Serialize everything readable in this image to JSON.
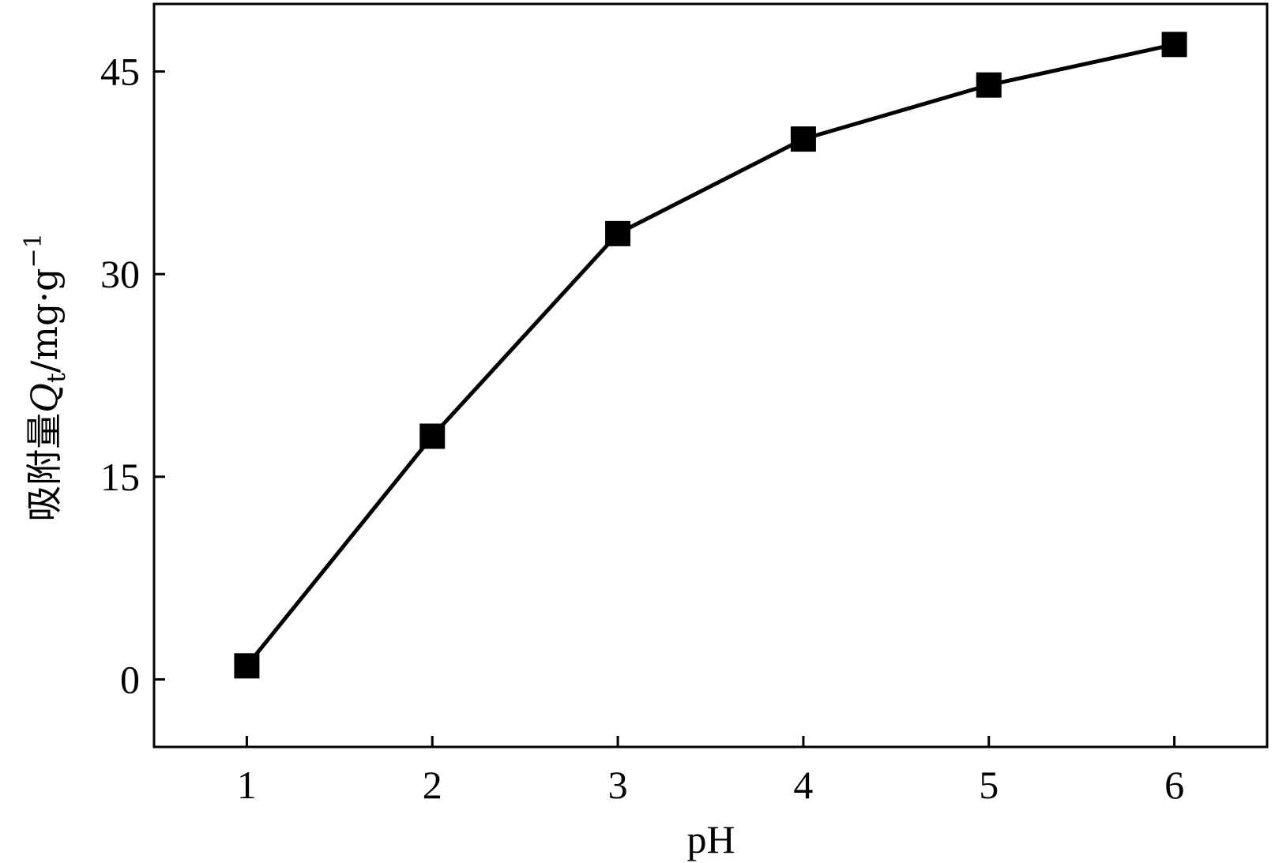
{
  "chart_data": {
    "type": "line",
    "x": [
      1,
      2,
      3,
      4,
      5,
      6
    ],
    "series": [
      {
        "values": [
          1,
          18,
          33,
          40,
          44,
          47
        ]
      }
    ],
    "xlabel": "pH",
    "ylabel": {
      "prefix": "吸附量",
      "symbol": "Q",
      "subscript": "t",
      "unit": "/mg·g",
      "superscript": "−1"
    },
    "xticks": [
      "1",
      "2",
      "3",
      "4",
      "5",
      "6"
    ],
    "yticks": [
      "0",
      "15",
      "30",
      "45"
    ],
    "xlim": [
      0.5,
      6.5
    ],
    "ylim": [
      -5,
      50
    ],
    "grid": false,
    "marker": "square",
    "line_color": "#000000",
    "marker_color": "#000000"
  }
}
